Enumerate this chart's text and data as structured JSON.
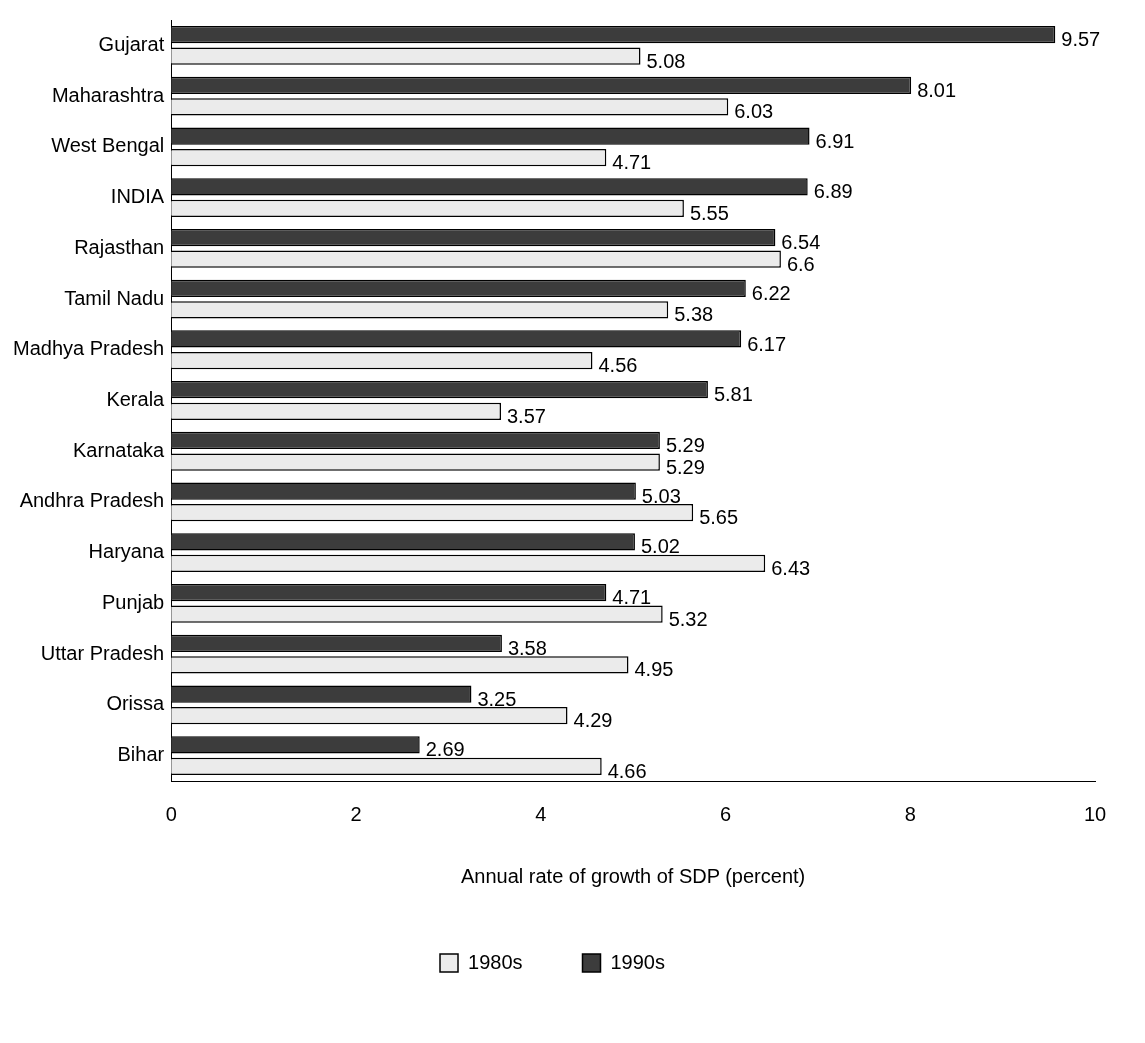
{
  "chart_data": {
    "type": "bar",
    "orientation": "horizontal",
    "xlabel": "Annual rate of growth of SDP (percent)",
    "categories": [
      "Gujarat",
      "Maharashtra",
      "West Bengal",
      "INDIA",
      "Rajasthan",
      "Tamil Nadu",
      "Madhya Pradesh",
      "Kerala",
      "Karnataka",
      "Andhra Pradesh",
      "Haryana",
      "Punjab",
      "Uttar Pradesh",
      "Orissa",
      "Bihar"
    ],
    "series": [
      {
        "name": "1980s",
        "color": "#ebebeb",
        "values": [
          5.08,
          6.03,
          4.71,
          5.55,
          6.6,
          5.38,
          4.56,
          3.57,
          5.29,
          5.65,
          6.43,
          5.32,
          4.95,
          4.29,
          4.66
        ]
      },
      {
        "name": "1990s",
        "color": "#3c3c3c",
        "values": [
          9.57,
          8.01,
          6.91,
          6.89,
          6.54,
          6.22,
          6.17,
          5.81,
          5.29,
          5.03,
          5.02,
          4.71,
          3.58,
          3.25,
          2.69
        ]
      }
    ],
    "xlim": [
      0,
      10
    ],
    "xticks": [
      0,
      2,
      4,
      6,
      8,
      10
    ],
    "grid": false,
    "legend": "bottom",
    "data_labels": true
  }
}
